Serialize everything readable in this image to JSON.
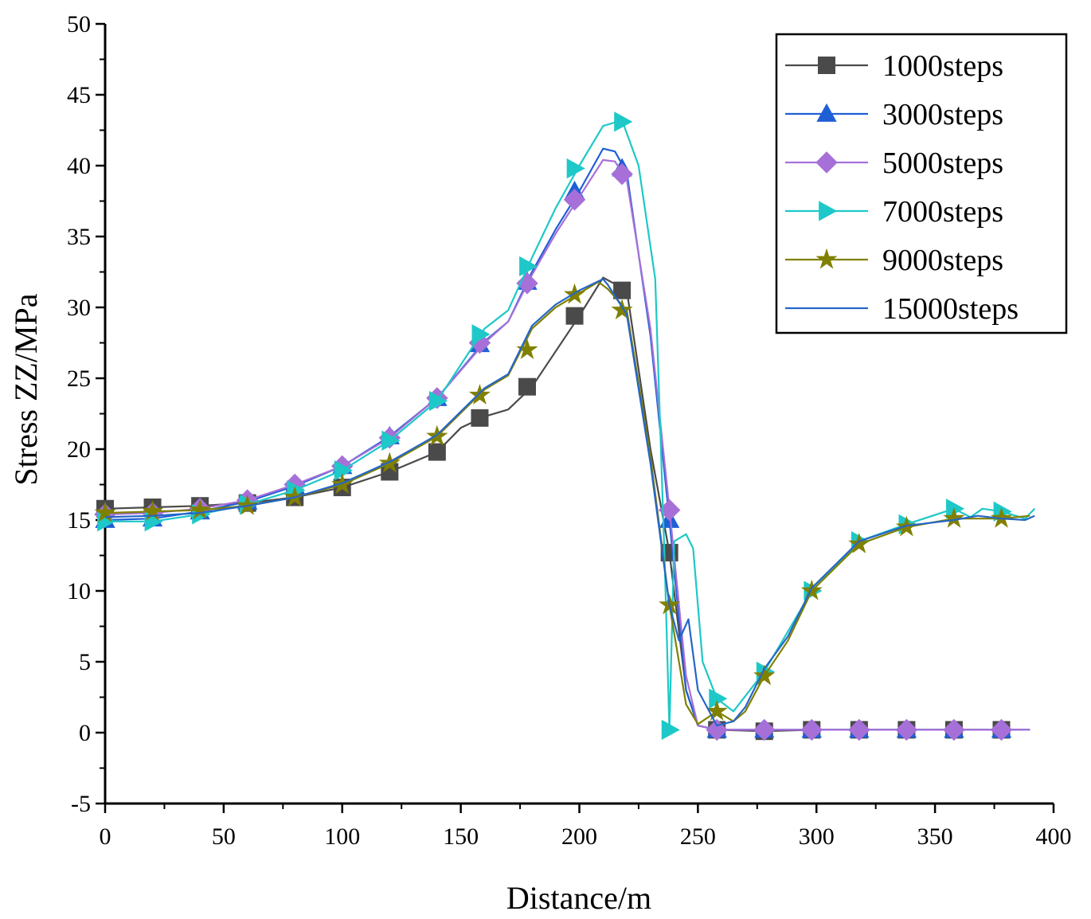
{
  "chart_data": {
    "type": "line",
    "title": "",
    "xlabel": "Distance/m",
    "ylabel": "Stress ZZ/MPa",
    "xlim": [
      0,
      400
    ],
    "ylim": [
      -5,
      50
    ],
    "xticks": [
      0,
      50,
      100,
      150,
      200,
      250,
      300,
      350,
      400
    ],
    "yticks": [
      -5,
      0,
      5,
      10,
      15,
      20,
      25,
      30,
      35,
      40,
      45,
      50
    ],
    "grid": false,
    "legend_position": "top-right",
    "series": [
      {
        "name": "1000steps",
        "color": "#4a4a4a",
        "marker": "square",
        "x": [
          0,
          20,
          40,
          60,
          80,
          100,
          120,
          140,
          150,
          160,
          170,
          180,
          200,
          210,
          220,
          230,
          238,
          245,
          250,
          258,
          278,
          298,
          318,
          338,
          358,
          378,
          390
        ],
        "y": [
          15.8,
          15.9,
          16.0,
          16.2,
          16.6,
          17.3,
          18.4,
          19.8,
          21.5,
          22.3,
          22.8,
          24.4,
          29.4,
          32.1,
          31.2,
          20.0,
          12.7,
          3.0,
          0.5,
          0.2,
          0.1,
          0.2,
          0.2,
          0.2,
          0.2,
          0.2,
          0.2
        ],
        "marker_x": [
          0,
          20,
          40,
          60,
          80,
          100,
          120,
          140,
          158,
          178,
          198,
          218,
          238,
          258,
          278,
          298,
          318,
          338,
          358,
          378
        ],
        "marker_y": [
          15.8,
          15.9,
          16.0,
          16.2,
          16.6,
          17.3,
          18.4,
          19.8,
          22.2,
          24.4,
          29.4,
          31.2,
          12.7,
          0.2,
          0.1,
          0.2,
          0.2,
          0.2,
          0.2,
          0.2
        ]
      },
      {
        "name": "3000steps",
        "color": "#1f5fd6",
        "marker": "triangle",
        "x": [
          0,
          20,
          40,
          60,
          80,
          100,
          120,
          140,
          160,
          170,
          180,
          190,
          200,
          210,
          215,
          220,
          230,
          238,
          245,
          250,
          258,
          278,
          298,
          318,
          338,
          358,
          378,
          390
        ],
        "y": [
          15.0,
          15.1,
          15.6,
          16.3,
          17.4,
          18.8,
          20.9,
          23.6,
          27.6,
          29.0,
          32.5,
          35.5,
          38.2,
          41.2,
          41.0,
          39.5,
          28.0,
          15.0,
          3.0,
          0.5,
          0.2,
          0.2,
          0.2,
          0.2,
          0.2,
          0.2,
          0.2,
          0.2
        ],
        "marker_x": [
          0,
          20,
          40,
          60,
          80,
          100,
          120,
          140,
          158,
          178,
          198,
          218,
          238,
          258,
          278,
          298,
          318,
          338,
          358,
          378
        ],
        "marker_y": [
          15.0,
          15.1,
          15.6,
          16.3,
          17.4,
          18.8,
          20.9,
          23.6,
          27.4,
          31.8,
          38.2,
          39.8,
          15.0,
          0.2,
          0.2,
          0.2,
          0.2,
          0.2,
          0.2,
          0.2
        ]
      },
      {
        "name": "5000steps",
        "color": "#a670d8",
        "marker": "diamond",
        "x": [
          0,
          20,
          40,
          60,
          80,
          100,
          120,
          140,
          160,
          170,
          180,
          190,
          200,
          210,
          215,
          220,
          230,
          238,
          245,
          250,
          258,
          278,
          298,
          318,
          338,
          358,
          378,
          390
        ],
        "y": [
          15.4,
          15.5,
          15.8,
          16.4,
          17.5,
          18.8,
          20.8,
          23.6,
          27.5,
          29.0,
          32.3,
          35.2,
          37.8,
          40.4,
          40.3,
          39.0,
          28.5,
          15.8,
          4.0,
          0.5,
          0.2,
          0.2,
          0.2,
          0.2,
          0.2,
          0.2,
          0.2,
          0.2
        ],
        "marker_x": [
          0,
          20,
          40,
          60,
          80,
          100,
          120,
          140,
          158,
          178,
          198,
          218,
          238,
          258,
          278,
          298,
          318,
          338,
          358,
          378
        ],
        "marker_y": [
          15.4,
          15.5,
          15.8,
          16.4,
          17.5,
          18.8,
          20.8,
          23.6,
          27.5,
          31.7,
          37.6,
          39.4,
          15.7,
          0.2,
          0.2,
          0.2,
          0.2,
          0.2,
          0.2,
          0.2
        ]
      },
      {
        "name": "7000steps",
        "color": "#1ec8c8",
        "marker": "triangle-right",
        "x": [
          0,
          20,
          40,
          60,
          80,
          100,
          120,
          140,
          160,
          170,
          180,
          190,
          200,
          210,
          218,
          225,
          232,
          236,
          238,
          240,
          245,
          248,
          252,
          258,
          265,
          278,
          298,
          318,
          338,
          358,
          365,
          370,
          378,
          388,
          392
        ],
        "y": [
          14.9,
          14.9,
          15.4,
          16.1,
          17.1,
          18.5,
          20.6,
          23.4,
          28.5,
          29.8,
          33.5,
          37.0,
          40.0,
          42.8,
          43.2,
          40.0,
          32.0,
          12.0,
          0.2,
          13.5,
          14.0,
          13.0,
          5.0,
          2.4,
          1.5,
          4.3,
          10.0,
          13.5,
          14.7,
          15.8,
          15.2,
          15.8,
          15.6,
          15.1,
          15.8
        ],
        "marker_x": [
          0,
          20,
          40,
          60,
          80,
          100,
          120,
          140,
          158,
          178,
          198,
          218,
          238,
          258,
          278,
          298,
          318,
          338,
          358,
          378
        ],
        "marker_y": [
          14.9,
          14.9,
          15.4,
          16.1,
          17.1,
          18.5,
          20.6,
          23.4,
          28.1,
          32.9,
          39.8,
          43.1,
          0.2,
          2.4,
          4.3,
          10.0,
          13.5,
          14.7,
          15.8,
          15.6
        ]
      },
      {
        "name": "9000steps",
        "color": "#808000",
        "marker": "star",
        "x": [
          0,
          20,
          40,
          60,
          80,
          100,
          120,
          140,
          160,
          170,
          180,
          190,
          200,
          208,
          212,
          220,
          230,
          238,
          242,
          245,
          250,
          258,
          265,
          270,
          278,
          288,
          298,
          318,
          338,
          358,
          378,
          390
        ],
        "y": [
          15.5,
          15.6,
          15.7,
          16.0,
          16.6,
          17.5,
          19.0,
          20.9,
          24.2,
          25.2,
          28.5,
          30.0,
          31.0,
          31.8,
          31.3,
          29.8,
          19.5,
          9.0,
          5.0,
          2.0,
          0.6,
          1.5,
          0.8,
          1.5,
          4.0,
          6.5,
          10.0,
          13.3,
          14.5,
          15.1,
          15.1,
          15.3
        ],
        "marker_x": [
          0,
          20,
          40,
          60,
          80,
          100,
          120,
          140,
          158,
          178,
          198,
          218,
          238,
          258,
          278,
          298,
          318,
          338,
          358,
          378
        ],
        "marker_y": [
          15.5,
          15.6,
          15.7,
          16.0,
          16.6,
          17.5,
          19.0,
          20.9,
          23.8,
          27.0,
          30.9,
          29.8,
          9.0,
          1.5,
          4.0,
          10.0,
          13.3,
          14.5,
          15.1,
          15.1
        ]
      },
      {
        "name": "15000steps",
        "color": "#2566c8",
        "marker": "none",
        "x": [
          0,
          20,
          40,
          60,
          80,
          100,
          120,
          140,
          160,
          170,
          180,
          190,
          200,
          210,
          212,
          220,
          230,
          238,
          242,
          246,
          250,
          258,
          265,
          270,
          278,
          288,
          298,
          318,
          338,
          358,
          368,
          378,
          388,
          392
        ],
        "y": [
          15.2,
          15.3,
          15.5,
          16.0,
          16.6,
          17.6,
          19.1,
          21.0,
          24.3,
          25.3,
          28.7,
          30.2,
          31.2,
          32.0,
          31.6,
          29.5,
          19.0,
          9.0,
          6.5,
          8.0,
          3.0,
          0.5,
          0.8,
          1.8,
          4.5,
          6.8,
          10.2,
          13.5,
          14.6,
          15.0,
          15.3,
          15.1,
          15.0,
          15.3
        ],
        "marker_x": [],
        "marker_y": []
      }
    ]
  }
}
